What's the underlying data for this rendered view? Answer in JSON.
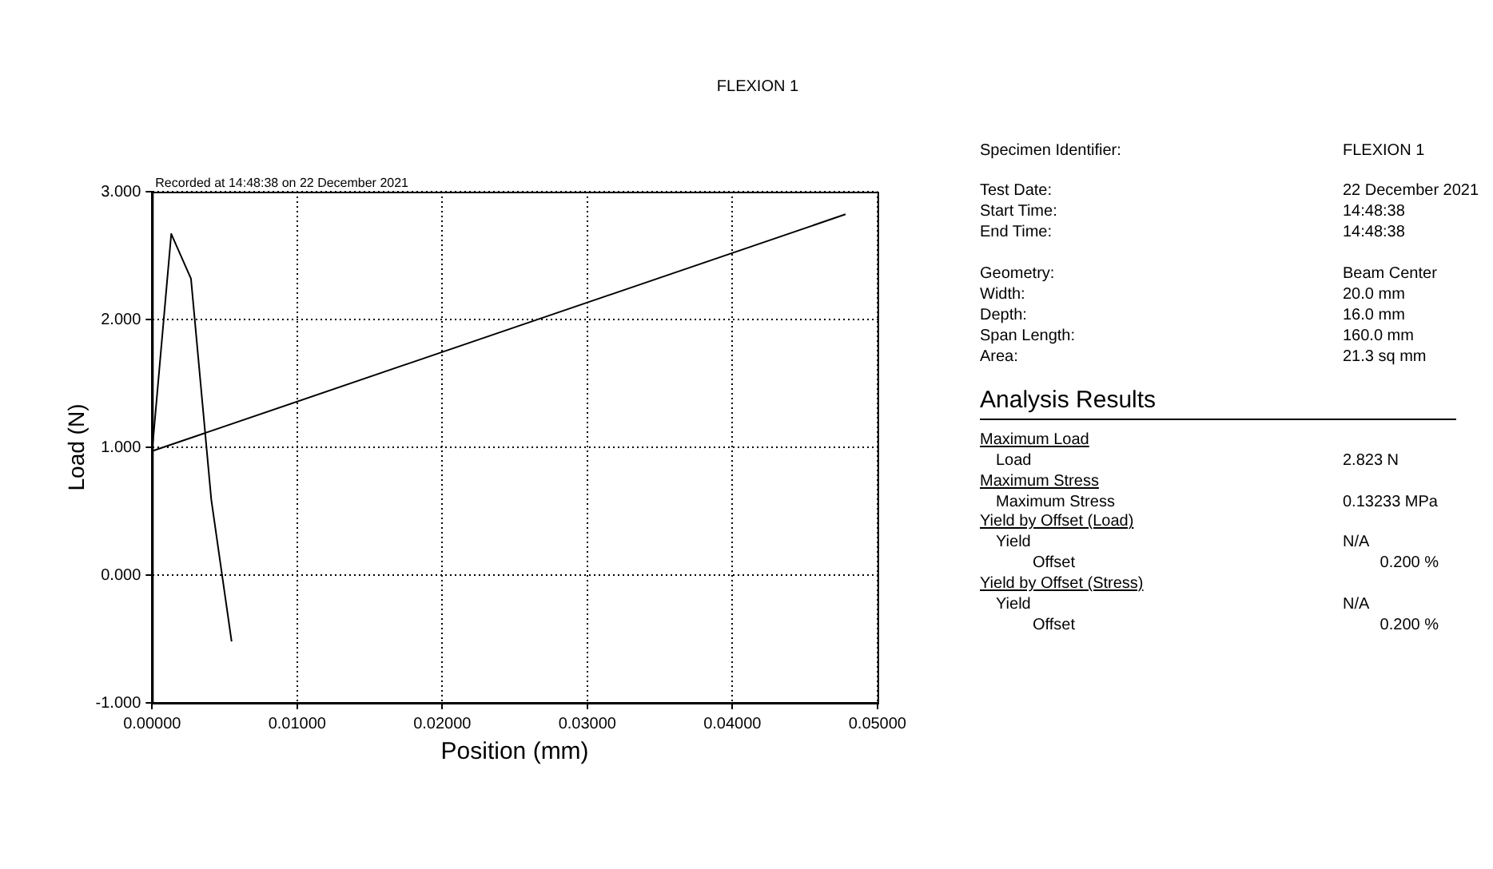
{
  "chart_data": {
    "type": "line",
    "title": "FLEXION 1",
    "xlabel": "Position (mm)",
    "ylabel": "Load (N)",
    "series": [
      {
        "color": "#000000",
        "x": [
          0.00548,
          0.00408,
          0.00268,
          0.00132,
          0.0,
          0.0478
        ],
        "values": [
          -0.52,
          0.59,
          2.32,
          2.67,
          0.97,
          2.823
        ]
      }
    ],
    "xlim": [
      0,
      0.05
    ],
    "ylim": [
      -1,
      3
    ],
    "xticks": [
      {
        "value": 0,
        "label": "0.00000"
      },
      {
        "value": 0.01,
        "label": "0.01000"
      },
      {
        "value": 0.02,
        "label": "0.02000"
      },
      {
        "value": 0.03,
        "label": "0.03000"
      },
      {
        "value": 0.04,
        "label": "0.04000"
      },
      {
        "value": 0.05,
        "label": "0.05000"
      }
    ],
    "yticks": [
      {
        "value": -1,
        "label": "-1.000"
      },
      {
        "value": 0,
        "label": "0.000"
      },
      {
        "value": 1,
        "label": "1.000"
      },
      {
        "value": 2,
        "label": "2.000"
      },
      {
        "value": 3,
        "label": "3.000"
      }
    ],
    "grid": true,
    "legend": false,
    "marker": "none",
    "line_style": "solid",
    "annotations": [
      "Recorded at 14:48:38 on 22 December 2021",
      "Specimen Identifier:",
      "FLEXION 1",
      "Test Date:",
      "22 December 2021",
      "Start Time:",
      "14:48:38",
      "End Time:",
      "14:48:38",
      "Geometry:",
      "Beam Center",
      "Width:",
      "20.0 mm",
      "Depth:",
      "16.0 mm",
      "Span Length:",
      "160.0 mm",
      "Area:",
      "21.3 sq mm",
      "Analysis Results",
      "Maximum Load",
      "Load",
      "2.823 N",
      "Maximum Stress",
      "Maximum Stress",
      "0.13233 MPa",
      "Yield by Offset (Load)",
      "Yield",
      "N/A",
      "Offset",
      "0.200 %",
      "Yield by Offset (Stress)",
      "Yield",
      "N/A",
      "Offset",
      "0.200 %"
    ]
  }
}
